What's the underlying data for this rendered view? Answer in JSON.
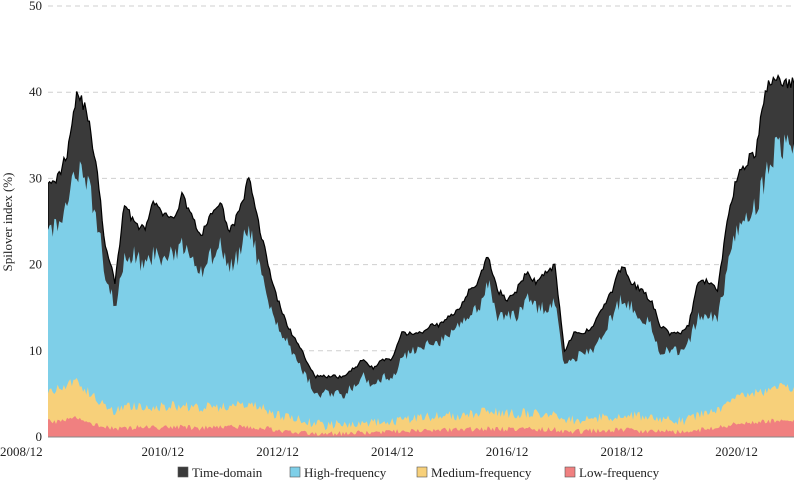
{
  "chart_data": {
    "type": "area",
    "title": "",
    "xlabel": "",
    "ylabel": "Spilover index (%)",
    "ylim": [
      0,
      50
    ],
    "yticks": [
      0,
      10,
      20,
      30,
      40,
      50
    ],
    "xlim": [
      "2008/12",
      "2021/12"
    ],
    "xticks": [
      "2008/12",
      "2010/12",
      "2012/12",
      "2014/12",
      "2016/12",
      "2018/12",
      "2020/12"
    ],
    "grid": "horizontal dashed",
    "legend_position": "bottom",
    "x": [
      "2008/12",
      "2009/02",
      "2009/04",
      "2009/06",
      "2009/08",
      "2009/10",
      "2009/12",
      "2010/02",
      "2010/04",
      "2010/06",
      "2010/08",
      "2010/10",
      "2010/12",
      "2011/02",
      "2011/04",
      "2011/06",
      "2011/08",
      "2011/10",
      "2011/12",
      "2012/02",
      "2012/04",
      "2012/06",
      "2012/08",
      "2012/10",
      "2012/12",
      "2013/02",
      "2013/04",
      "2013/06",
      "2013/08",
      "2013/10",
      "2013/12",
      "2014/02",
      "2014/04",
      "2014/06",
      "2014/08",
      "2014/10",
      "2014/12",
      "2015/02",
      "2015/04",
      "2015/06",
      "2015/08",
      "2015/10",
      "2015/12",
      "2016/02",
      "2016/04",
      "2016/06",
      "2016/08",
      "2016/10",
      "2016/12",
      "2017/02",
      "2017/04",
      "2017/06",
      "2017/08",
      "2017/10",
      "2017/12",
      "2018/02",
      "2018/04",
      "2018/06",
      "2018/08",
      "2018/10",
      "2018/12",
      "2019/02",
      "2019/04",
      "2019/06",
      "2019/08",
      "2019/10",
      "2019/12",
      "2020/02",
      "2020/04",
      "2020/06",
      "2020/08",
      "2020/10",
      "2020/12",
      "2021/02",
      "2021/04",
      "2021/06",
      "2021/08",
      "2021/10",
      "2021/12"
    ],
    "series": [
      {
        "name": "Time-domain",
        "color": "#3a3a3a",
        "values": [
          30,
          30,
          33,
          40,
          38,
          32,
          22,
          18,
          27,
          25,
          24,
          27,
          26,
          25,
          28,
          26,
          23,
          26,
          27,
          24,
          26,
          30,
          25,
          20,
          16,
          13,
          11,
          9,
          7,
          7,
          7,
          7,
          8,
          9,
          8,
          9,
          9,
          12,
          12,
          12,
          13,
          13,
          14,
          15,
          17,
          18,
          21,
          17,
          16,
          17,
          19,
          18,
          19,
          20,
          10,
          12,
          12,
          13,
          15,
          17,
          20,
          18,
          17,
          16,
          13,
          12,
          12,
          13,
          18,
          18,
          17,
          25,
          30,
          32,
          33,
          40,
          42,
          41,
          41
        ]
      },
      {
        "name": "High-frequency",
        "color": "#7ecfe8",
        "values": [
          24,
          24,
          27,
          31,
          30,
          26,
          19,
          15,
          21,
          21,
          20,
          21,
          21,
          21,
          22,
          21,
          19,
          21,
          22,
          20,
          21,
          25,
          20,
          16,
          13,
          11,
          9,
          7,
          5,
          5,
          5,
          5,
          6,
          7,
          6,
          7,
          7,
          9,
          10,
          10,
          11,
          11,
          12,
          13,
          14,
          15,
          18,
          14,
          14,
          14,
          16,
          15,
          15,
          16,
          8,
          9,
          10,
          10,
          12,
          14,
          16,
          15,
          14,
          13,
          10,
          10,
          10,
          11,
          14,
          14,
          14,
          19,
          24,
          26,
          27,
          30,
          33,
          34,
          34
        ]
      },
      {
        "name": "Medium-frequency",
        "color": "#f7d07a",
        "values": [
          5.5,
          5.5,
          6,
          6.5,
          5.5,
          4.5,
          3.5,
          3,
          3.5,
          3.5,
          3.5,
          3.5,
          3.5,
          3.7,
          3.5,
          3.5,
          3.3,
          3.5,
          3.5,
          3.5,
          3.7,
          3.8,
          3.5,
          3,
          2.5,
          2.3,
          2,
          1.8,
          1.5,
          1.4,
          1.4,
          1.5,
          1.6,
          1.6,
          1.6,
          1.7,
          1.8,
          2,
          2.2,
          2.2,
          2.3,
          2.4,
          2.5,
          2.5,
          2.6,
          2.8,
          3,
          2.8,
          2.7,
          2.7,
          2.8,
          2.8,
          2.8,
          2.9,
          1.8,
          2,
          2,
          2.1,
          2.2,
          2.4,
          2.6,
          2.5,
          2.3,
          2.2,
          2,
          1.9,
          1.9,
          2,
          2.5,
          2.7,
          3,
          4,
          4.5,
          4.8,
          5,
          5.3,
          5.6,
          5.8,
          5.8
        ]
      },
      {
        "name": "Low-frequency",
        "color": "#f08080",
        "values": [
          1.8,
          1.8,
          2,
          2.2,
          1.8,
          1.5,
          1.2,
          1,
          1.1,
          1.1,
          1.1,
          1.1,
          1.1,
          1.2,
          1.1,
          1.1,
          1,
          1.1,
          1.1,
          1.1,
          1.2,
          1.2,
          1.1,
          1,
          0.8,
          0.7,
          0.6,
          0.5,
          0.4,
          0.4,
          0.4,
          0.4,
          0.5,
          0.5,
          0.5,
          0.5,
          0.6,
          0.6,
          0.7,
          0.7,
          0.7,
          0.8,
          0.8,
          0.8,
          0.9,
          0.9,
          1,
          0.9,
          0.9,
          0.9,
          0.9,
          0.9,
          0.9,
          0.9,
          0.6,
          0.6,
          0.7,
          0.7,
          0.7,
          0.8,
          0.8,
          0.8,
          0.7,
          0.7,
          0.6,
          0.6,
          0.6,
          0.7,
          0.8,
          0.9,
          1,
          1.3,
          1.5,
          1.6,
          1.7,
          1.8,
          1.9,
          2,
          2
        ]
      }
    ]
  }
}
